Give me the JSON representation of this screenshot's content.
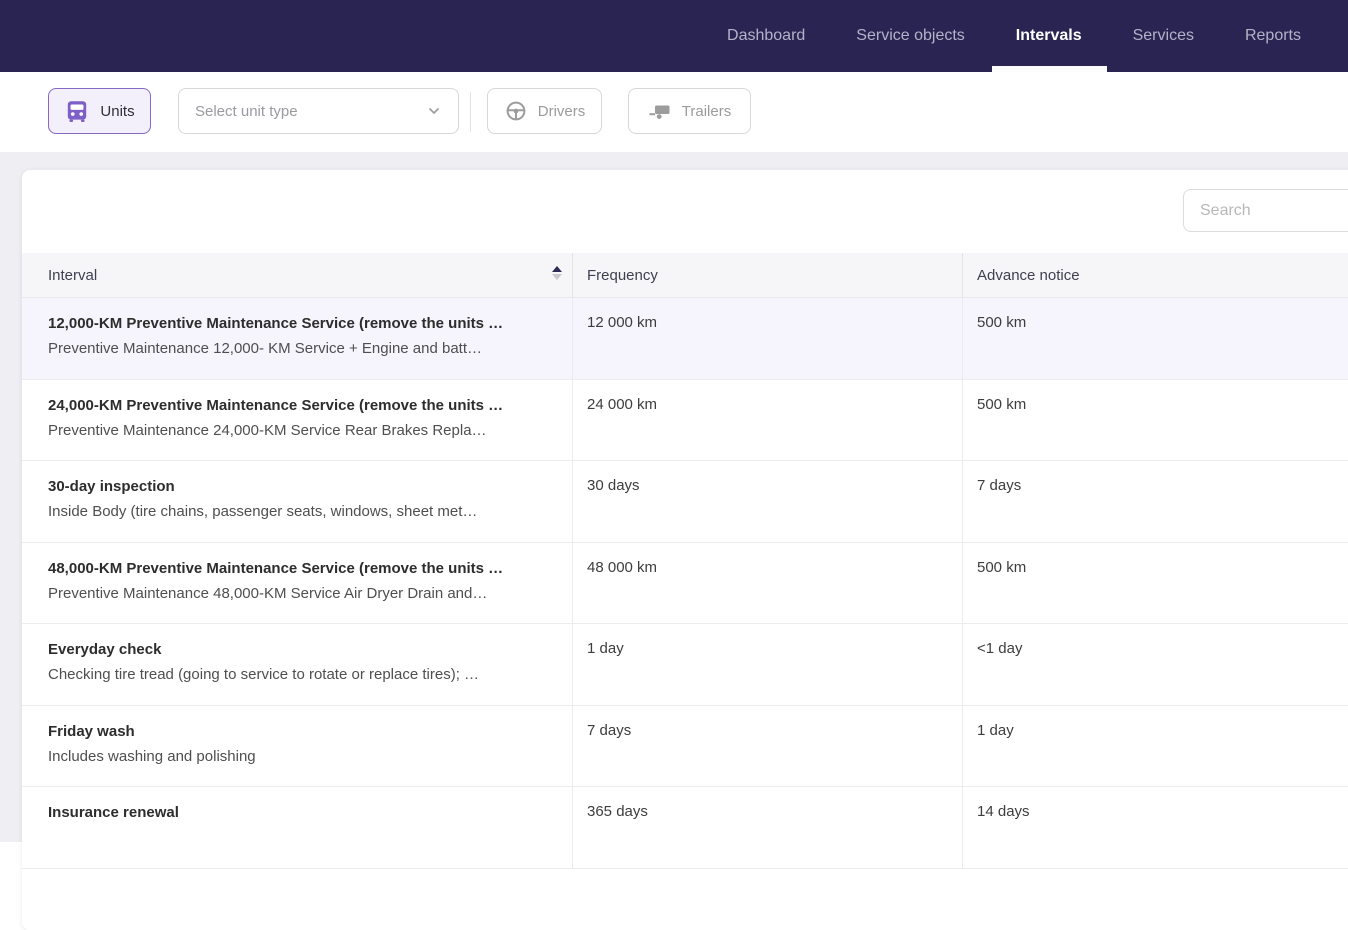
{
  "nav": {
    "items": [
      {
        "label": "Dashboard",
        "active": false
      },
      {
        "label": "Service objects",
        "active": false
      },
      {
        "label": "Intervals",
        "active": true
      },
      {
        "label": "Services",
        "active": false
      },
      {
        "label": "Reports",
        "active": false
      }
    ]
  },
  "toolbar": {
    "units_label": "Units",
    "unit_type_placeholder": "Select unit type",
    "drivers_label": "Drivers",
    "trailers_label": "Trailers"
  },
  "search": {
    "placeholder": "Search"
  },
  "table": {
    "columns": [
      "Interval",
      "Frequency",
      "Advance notice"
    ],
    "sort": {
      "column": "Interval",
      "direction": "asc"
    },
    "rows": [
      {
        "title": "12,000-KM Preventive Maintenance Service (remove the units …",
        "subtitle": "Preventive Maintenance 12,000- KM Service + Engine and batt…",
        "frequency": "12 000 km",
        "advance_notice": "500 km",
        "highlighted": true
      },
      {
        "title": "24,000-KM Preventive Maintenance Service (remove the units …",
        "subtitle": "Preventive Maintenance 24,000-KM Service Rear Brakes Repla…",
        "frequency": "24 000 km",
        "advance_notice": "500 km",
        "highlighted": false
      },
      {
        "title": "30-day inspection",
        "subtitle": "Inside Body (tire chains, passenger seats, windows, sheet met…",
        "frequency": "30 days",
        "advance_notice": "7 days",
        "highlighted": false
      },
      {
        "title": "48,000-KM Preventive Maintenance Service (remove the units …",
        "subtitle": "Preventive Maintenance 48,000-KM Service Air Dryer Drain and…",
        "frequency": "48 000 km",
        "advance_notice": "500 km",
        "highlighted": false
      },
      {
        "title": "Everyday check",
        "subtitle": "Checking tire tread (going to service to rotate or replace tires); …",
        "frequency": "1 day",
        "advance_notice": "<1 day",
        "highlighted": false
      },
      {
        "title": "Friday wash",
        "subtitle": "Includes washing and polishing",
        "frequency": "7 days",
        "advance_notice": "1 day",
        "highlighted": false
      },
      {
        "title": "Insurance renewal",
        "subtitle": "",
        "frequency": "365 days",
        "advance_notice": "14 days",
        "highlighted": false
      }
    ]
  },
  "colors": {
    "nav_bg": "#2a2452",
    "nav_text_inactive": "#b5b1c9",
    "nav_text_active": "#ffffff",
    "accent_purple": "#7d5fc7",
    "units_button_border": "#8769c6",
    "units_button_bg": "#f4f0fb",
    "row_highlight_bg": "#f6f4fc",
    "table_header_bg": "#f6f6f8",
    "content_bg": "#efeef3",
    "muted_icon_grey": "#9c9c9c"
  }
}
